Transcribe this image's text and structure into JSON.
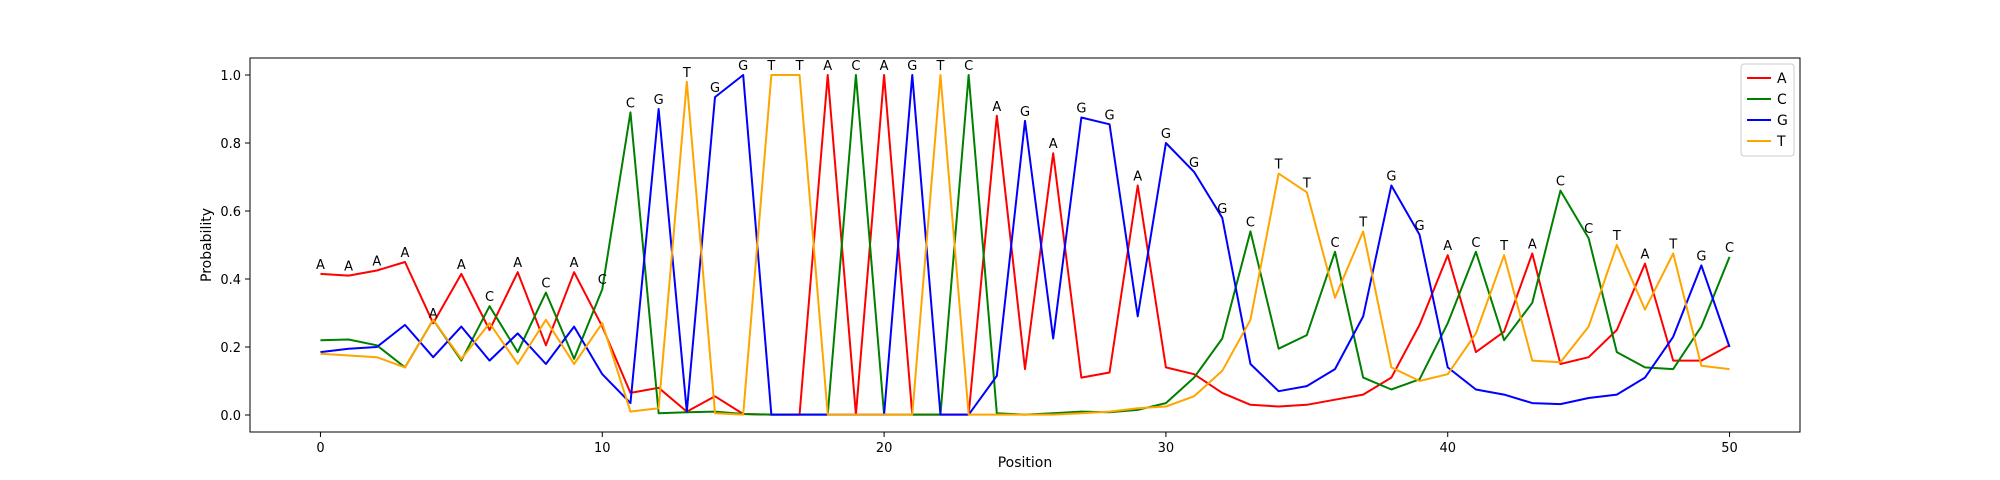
{
  "chart_data": {
    "type": "line",
    "title": "",
    "xlabel": "Position",
    "ylabel": "Probability",
    "xlim": [
      -2.5,
      52.5
    ],
    "ylim": [
      -0.05,
      1.05
    ],
    "xticks": [
      0,
      10,
      20,
      30,
      40,
      50
    ],
    "xtick_labels": [
      "0",
      "10",
      "20",
      "30",
      "40",
      "50"
    ],
    "yticks": [
      0.0,
      0.2,
      0.4,
      0.6,
      0.8,
      1.0
    ],
    "ytick_labels": [
      "0.0",
      "0.2",
      "0.4",
      "0.6",
      "0.8",
      "1.0"
    ],
    "grid": false,
    "legend_position": "top-right",
    "x": [
      0,
      1,
      2,
      3,
      4,
      5,
      6,
      7,
      8,
      9,
      10,
      11,
      12,
      13,
      14,
      15,
      16,
      17,
      18,
      19,
      20,
      21,
      22,
      23,
      24,
      25,
      26,
      27,
      28,
      29,
      30,
      31,
      32,
      33,
      34,
      35,
      36,
      37,
      38,
      39,
      40,
      41,
      42,
      43,
      44,
      45,
      46,
      47,
      48,
      49,
      50
    ],
    "series": [
      {
        "name": "A",
        "color": "#ff0000",
        "values": [
          0.415,
          0.41,
          0.425,
          0.45,
          0.27,
          0.415,
          0.25,
          0.42,
          0.205,
          0.42,
          0.26,
          0.065,
          0.08,
          0.01,
          0.055,
          0.003,
          0.001,
          0.001,
          1.0,
          0.001,
          1.0,
          0.001,
          0.001,
          0.001,
          0.88,
          0.135,
          0.77,
          0.11,
          0.125,
          0.675,
          0.14,
          0.12,
          0.065,
          0.03,
          0.025,
          0.03,
          0.045,
          0.06,
          0.11,
          0.265,
          0.47,
          0.185,
          0.245,
          0.475,
          0.15,
          0.17,
          0.25,
          0.445,
          0.16,
          0.16,
          0.205
        ]
      },
      {
        "name": "C",
        "color": "#008000",
        "values": [
          0.22,
          0.222,
          0.205,
          0.14,
          0.28,
          0.16,
          0.32,
          0.185,
          0.36,
          0.165,
          0.37,
          0.89,
          0.005,
          0.008,
          0.01,
          0.003,
          0.001,
          0.001,
          0.001,
          1.0,
          0.001,
          0.001,
          0.001,
          1.0,
          0.005,
          0.001,
          0.005,
          0.01,
          0.008,
          0.015,
          0.035,
          0.11,
          0.225,
          0.54,
          0.195,
          0.235,
          0.48,
          0.11,
          0.075,
          0.105,
          0.27,
          0.48,
          0.22,
          0.33,
          0.66,
          0.52,
          0.185,
          0.14,
          0.135,
          0.26,
          0.465
        ]
      },
      {
        "name": "G",
        "color": "#0000ff",
        "values": [
          0.185,
          0.195,
          0.2,
          0.265,
          0.17,
          0.26,
          0.16,
          0.24,
          0.15,
          0.26,
          0.12,
          0.035,
          0.9,
          0.01,
          0.935,
          1.0,
          0.001,
          0.001,
          0.001,
          0.001,
          0.001,
          1.0,
          0.001,
          0.001,
          0.115,
          0.865,
          0.225,
          0.875,
          0.855,
          0.29,
          0.8,
          0.715,
          0.58,
          0.15,
          0.07,
          0.085,
          0.135,
          0.29,
          0.675,
          0.53,
          0.14,
          0.075,
          0.06,
          0.035,
          0.032,
          0.05,
          0.06,
          0.11,
          0.23,
          0.44,
          0.2
        ]
      },
      {
        "name": "T",
        "color": "#ffa500",
        "values": [
          0.18,
          0.175,
          0.17,
          0.14,
          0.28,
          0.165,
          0.27,
          0.15,
          0.28,
          0.15,
          0.27,
          0.01,
          0.02,
          0.98,
          0.005,
          0.001,
          1.0,
          1.0,
          0.001,
          0.001,
          0.001,
          0.001,
          1.0,
          0.001,
          0.001,
          0.001,
          0.001,
          0.005,
          0.01,
          0.02,
          0.025,
          0.055,
          0.13,
          0.28,
          0.71,
          0.655,
          0.345,
          0.54,
          0.14,
          0.1,
          0.12,
          0.24,
          0.47,
          0.16,
          0.155,
          0.26,
          0.5,
          0.31,
          0.475,
          0.145,
          0.135
        ]
      }
    ],
    "annotations": {
      "letters": [
        "A",
        "A",
        "A",
        "A",
        "A",
        "A",
        "C",
        "A",
        "C",
        "A",
        "C",
        "C",
        "G",
        "T",
        "G",
        "G",
        "T",
        "T",
        "A",
        "C",
        "A",
        "G",
        "T",
        "C",
        "A",
        "G",
        "A",
        "G",
        "G",
        "A",
        "G",
        "G",
        "G",
        "C",
        "T",
        "T",
        "C",
        "T",
        "G",
        "G",
        "A",
        "C",
        "T",
        "A",
        "C",
        "C",
        "T",
        "A",
        "T",
        "G",
        "C"
      ],
      "values": [
        0.415,
        0.41,
        0.425,
        0.45,
        0.27,
        0.415,
        0.32,
        0.42,
        0.36,
        0.42,
        0.37,
        0.89,
        0.9,
        0.98,
        0.935,
        1.0,
        1.0,
        1.0,
        1.0,
        1.0,
        1.0,
        1.0,
        1.0,
        1.0,
        0.88,
        0.865,
        0.77,
        0.875,
        0.855,
        0.675,
        0.8,
        0.715,
        0.58,
        0.54,
        0.71,
        0.655,
        0.48,
        0.54,
        0.675,
        0.53,
        0.47,
        0.48,
        0.47,
        0.475,
        0.66,
        0.52,
        0.5,
        0.445,
        0.475,
        0.44,
        0.465
      ]
    }
  }
}
